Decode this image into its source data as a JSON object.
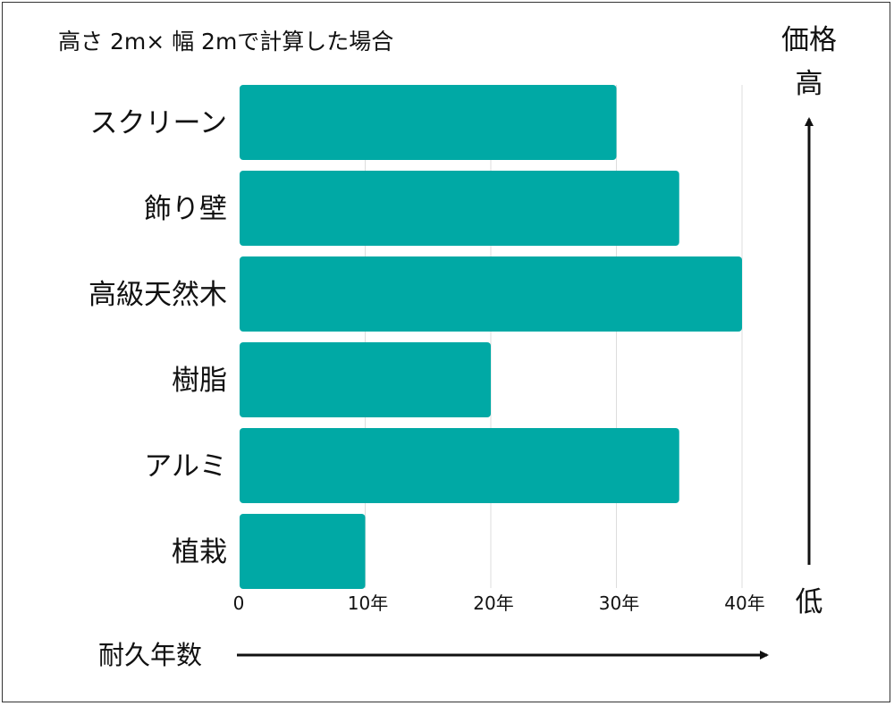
{
  "chart_data": {
    "type": "bar",
    "orientation": "horizontal",
    "title": "高さ 2m× 幅 2mで計算した場合",
    "categories": [
      "スクリーン",
      "飾り壁",
      "高級天然木",
      "樹脂",
      "アルミ",
      "植栽"
    ],
    "values": [
      30,
      35,
      40,
      20,
      35,
      10
    ],
    "xlabel": "耐久年数",
    "xlim": [
      0,
      40
    ],
    "xticks": [
      "0",
      "10年",
      "20年",
      "30年",
      "40年"
    ],
    "tick_values": [
      0,
      10,
      20,
      30,
      40
    ],
    "grid": true,
    "bar_color": "#00a9a5",
    "grid_color": "#dddddd",
    "price_axis": {
      "label_top_line1": "価格",
      "label_top_line2": "高",
      "label_bottom": "低"
    }
  }
}
